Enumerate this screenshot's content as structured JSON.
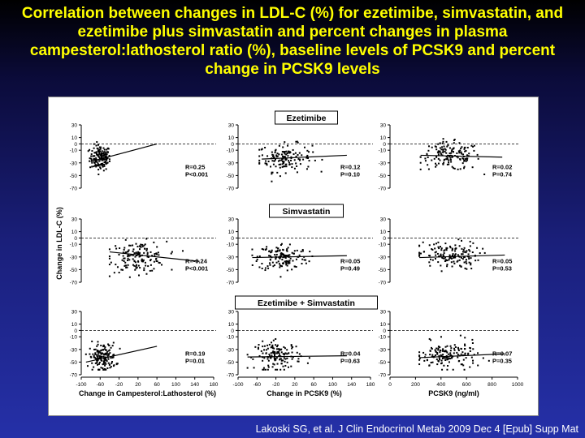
{
  "slide": {
    "title": "Correlation between changes in LDL-C (%) for ezetimibe, simvastatin, and ezetimibe plus simvastatin and percent changes in plasma campesterol:lathosterol ratio (%), baseline levels of PCSK9 and percent change in PCSK9 levels",
    "citation": "Lakoski SG, et al. J Clin Endocrinol Metab 2009 Dec 4 [Epub] Supp Mat"
  },
  "colors": {
    "title": "#ffff00",
    "background_top": "#000000",
    "background_bottom": "#2530a8",
    "panel": "#ffffff",
    "citation": "#ffffff"
  },
  "chart_data": {
    "type": "scatter",
    "ylabel": "Change in LDL-C (%)",
    "ylim": [
      -70,
      30
    ],
    "y_ticks": [
      "30",
      "10",
      "0",
      "-10",
      "-30",
      "-50",
      "-70"
    ],
    "reference_line_y": 0,
    "columns": [
      {
        "xlabel": "Change in Campesterol:Lathosterol (%)",
        "xlim": [
          -100,
          180
        ],
        "x_ticks": [
          "-100",
          "-60",
          "-20",
          "20",
          "60",
          "100",
          "140",
          "180"
        ]
      },
      {
        "xlabel": "Change in PCSK9 (%)",
        "xlim": [
          -100,
          180
        ],
        "x_ticks": [
          "-100",
          "-60",
          "-20",
          "20",
          "60",
          "100",
          "140",
          "180"
        ]
      },
      {
        "xlabel": "PCSK9 (ng/ml)",
        "xlim": [
          0,
          1000
        ],
        "x_ticks": [
          "0",
          "200",
          "400",
          "600",
          "800",
          "1000"
        ]
      }
    ],
    "rows": [
      {
        "group": "Ezetimibe",
        "panels": [
          {
            "R": "R=0.25",
            "P": "P<0.001",
            "x_center": -60,
            "x_spread": 11,
            "y_center": -22,
            "y_spread": 10,
            "n": 150,
            "x_range": [
              -85,
              -40
            ],
            "fit": [
              [
                -80,
                -28
              ],
              [
                60,
                0
              ]
            ]
          },
          {
            "R": "R=0.12",
            "P": "P=0.10",
            "x_center": 0,
            "x_spread": 28,
            "y_center": -22,
            "y_spread": 11,
            "n": 140,
            "x_range": [
              -55,
              120
            ],
            "fit": [
              [
                -50,
                -24
              ],
              [
                130,
                -18
              ]
            ]
          },
          {
            "R": "R=0.02",
            "P": "P=0.74",
            "x_center": 470,
            "x_spread": 120,
            "y_center": -20,
            "y_spread": 11,
            "n": 150,
            "x_range": [
              240,
              860
            ],
            "fit": [
              [
                240,
                -18
              ],
              [
                880,
                -21
              ]
            ]
          }
        ]
      },
      {
        "group": "Simvastatin",
        "panels": [
          {
            "R": "R=-0.24",
            "P": "P<0.001",
            "x_center": 20,
            "x_spread": 30,
            "y_center": -30,
            "y_spread": 12,
            "n": 150,
            "x_range": [
              -40,
              150
            ],
            "fit": [
              [
                -40,
                -22
              ],
              [
                150,
                -37
              ]
            ]
          },
          {
            "R": "R=0.05",
            "P": "P=0.49",
            "x_center": -5,
            "x_spread": 26,
            "y_center": -30,
            "y_spread": 11,
            "n": 140,
            "x_range": [
              -70,
              110
            ],
            "fit": [
              [
                -70,
                -31
              ],
              [
                130,
                -28
              ]
            ]
          },
          {
            "R": "R=0.05",
            "P": "P=0.53",
            "x_center": 460,
            "x_spread": 120,
            "y_center": -28,
            "y_spread": 11,
            "n": 150,
            "x_range": [
              230,
              860
            ],
            "fit": [
              [
                230,
                -31
              ],
              [
                900,
                -27
              ]
            ]
          }
        ]
      },
      {
        "group": "Ezetimibe + Simvastatin",
        "panels": [
          {
            "R": "R=0.19",
            "P": "P=0.01",
            "x_center": -55,
            "x_spread": 14,
            "y_center": -42,
            "y_spread": 11,
            "n": 150,
            "x_range": [
              -90,
              20
            ],
            "fit": [
              [
                -90,
                -50
              ],
              [
                60,
                -25
              ]
            ]
          },
          {
            "R": "R=0.04",
            "P": "P=0.63",
            "x_center": -15,
            "x_spread": 24,
            "y_center": -40,
            "y_spread": 11,
            "n": 140,
            "x_range": [
              -80,
              90
            ],
            "fit": [
              [
                -80,
                -42
              ],
              [
                130,
                -40
              ]
            ]
          },
          {
            "R": "R=0.07",
            "P": "P=0.35",
            "x_center": 450,
            "x_spread": 120,
            "y_center": -40,
            "y_spread": 11,
            "n": 150,
            "x_range": [
              230,
              860
            ],
            "fit": [
              [
                230,
                -43
              ],
              [
                900,
                -37
              ]
            ]
          }
        ]
      }
    ]
  }
}
